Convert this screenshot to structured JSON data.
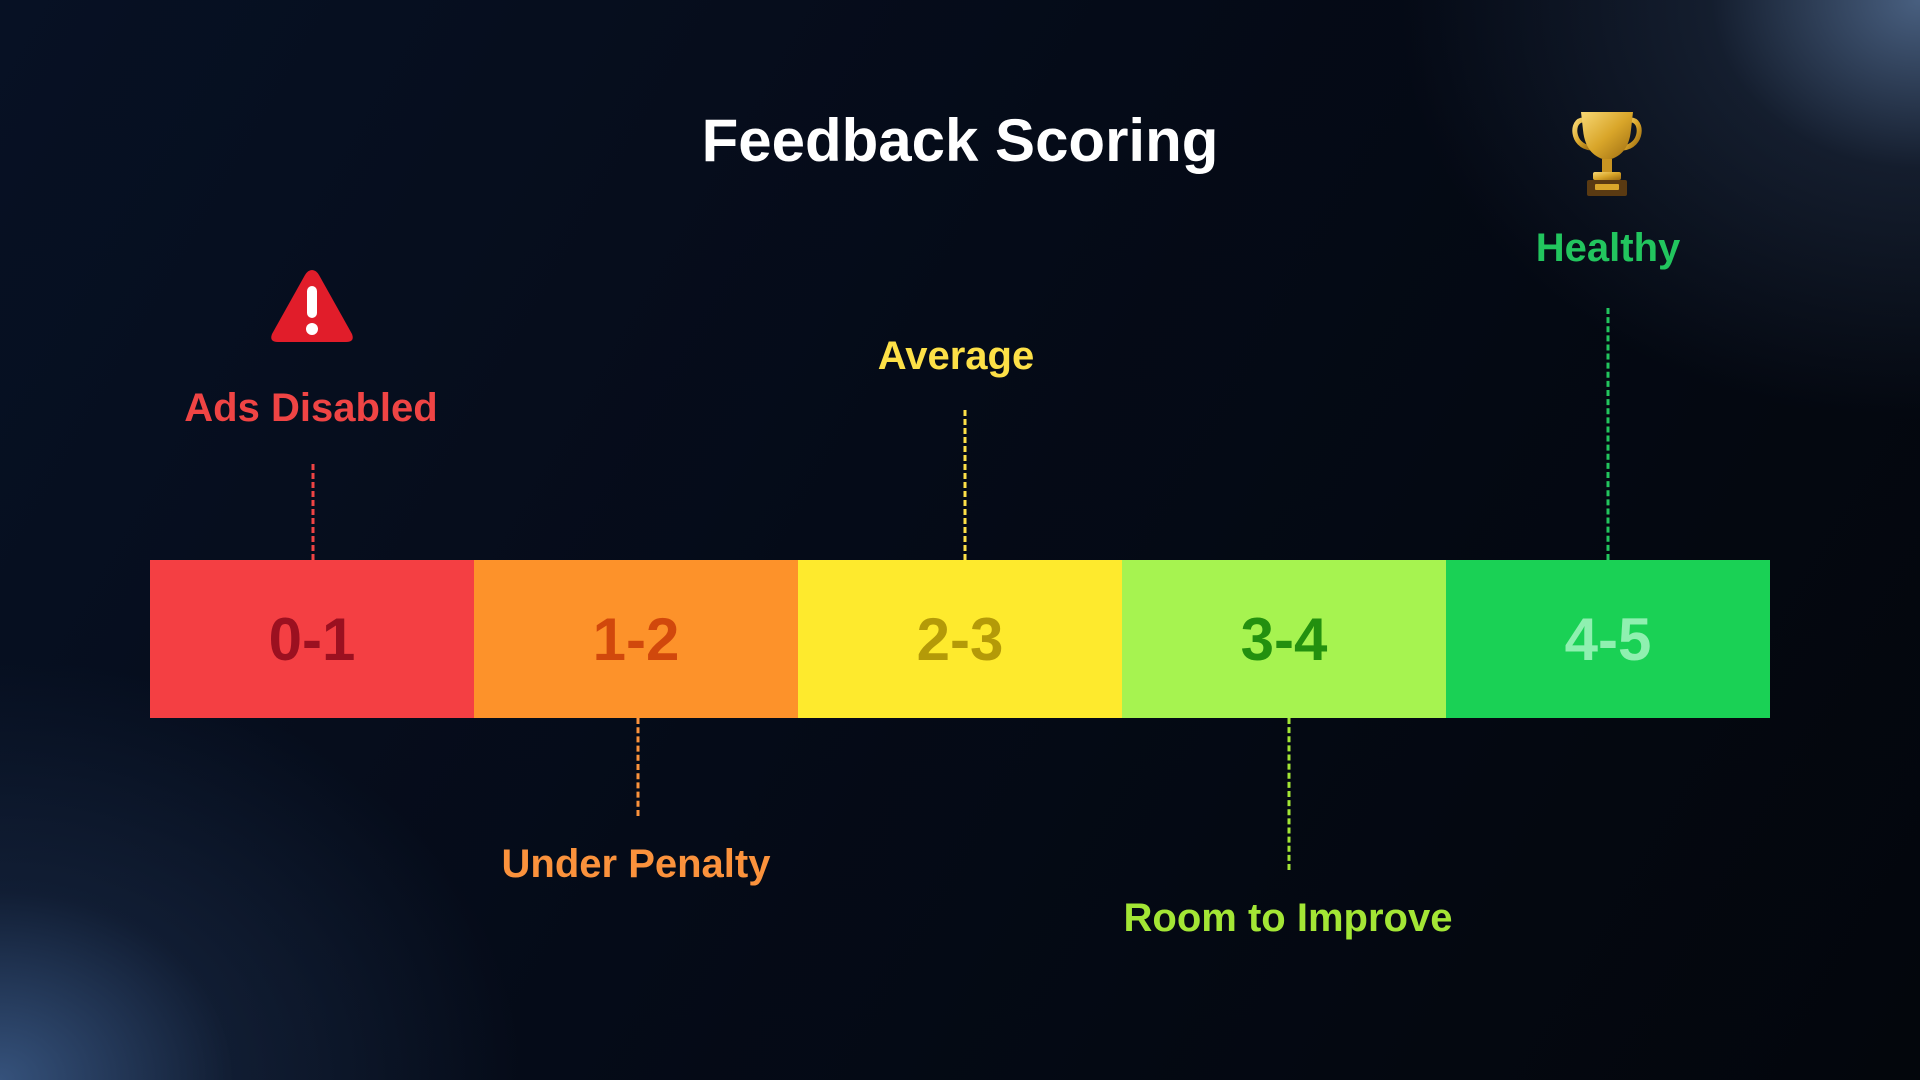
{
  "title": "Feedback Scoring",
  "segments": [
    {
      "range": "0-1",
      "fill": "#f43f43",
      "text_color": "#9b1020",
      "status": "Ads Disabled",
      "status_color": "#ef4444"
    },
    {
      "range": "1-2",
      "fill": "#fd922a",
      "text_color": "#d1480c",
      "status": "Under Penalty",
      "status_color": "#fb923c"
    },
    {
      "range": "2-3",
      "fill": "#feea2d",
      "text_color": "#b49a08",
      "status": "Average",
      "status_color": "#fde047"
    },
    {
      "range": "3-4",
      "fill": "#a6f350",
      "text_color": "#23900f",
      "status": "Room to Improve",
      "status_color": "#a3e635"
    },
    {
      "range": "4-5",
      "fill": "#1ad155",
      "text_color": "#8ff0b0",
      "status": "Healthy",
      "status_color": "#22c55e"
    }
  ],
  "icons": {
    "warning": "warning-icon",
    "trophy": "trophy-icon"
  }
}
